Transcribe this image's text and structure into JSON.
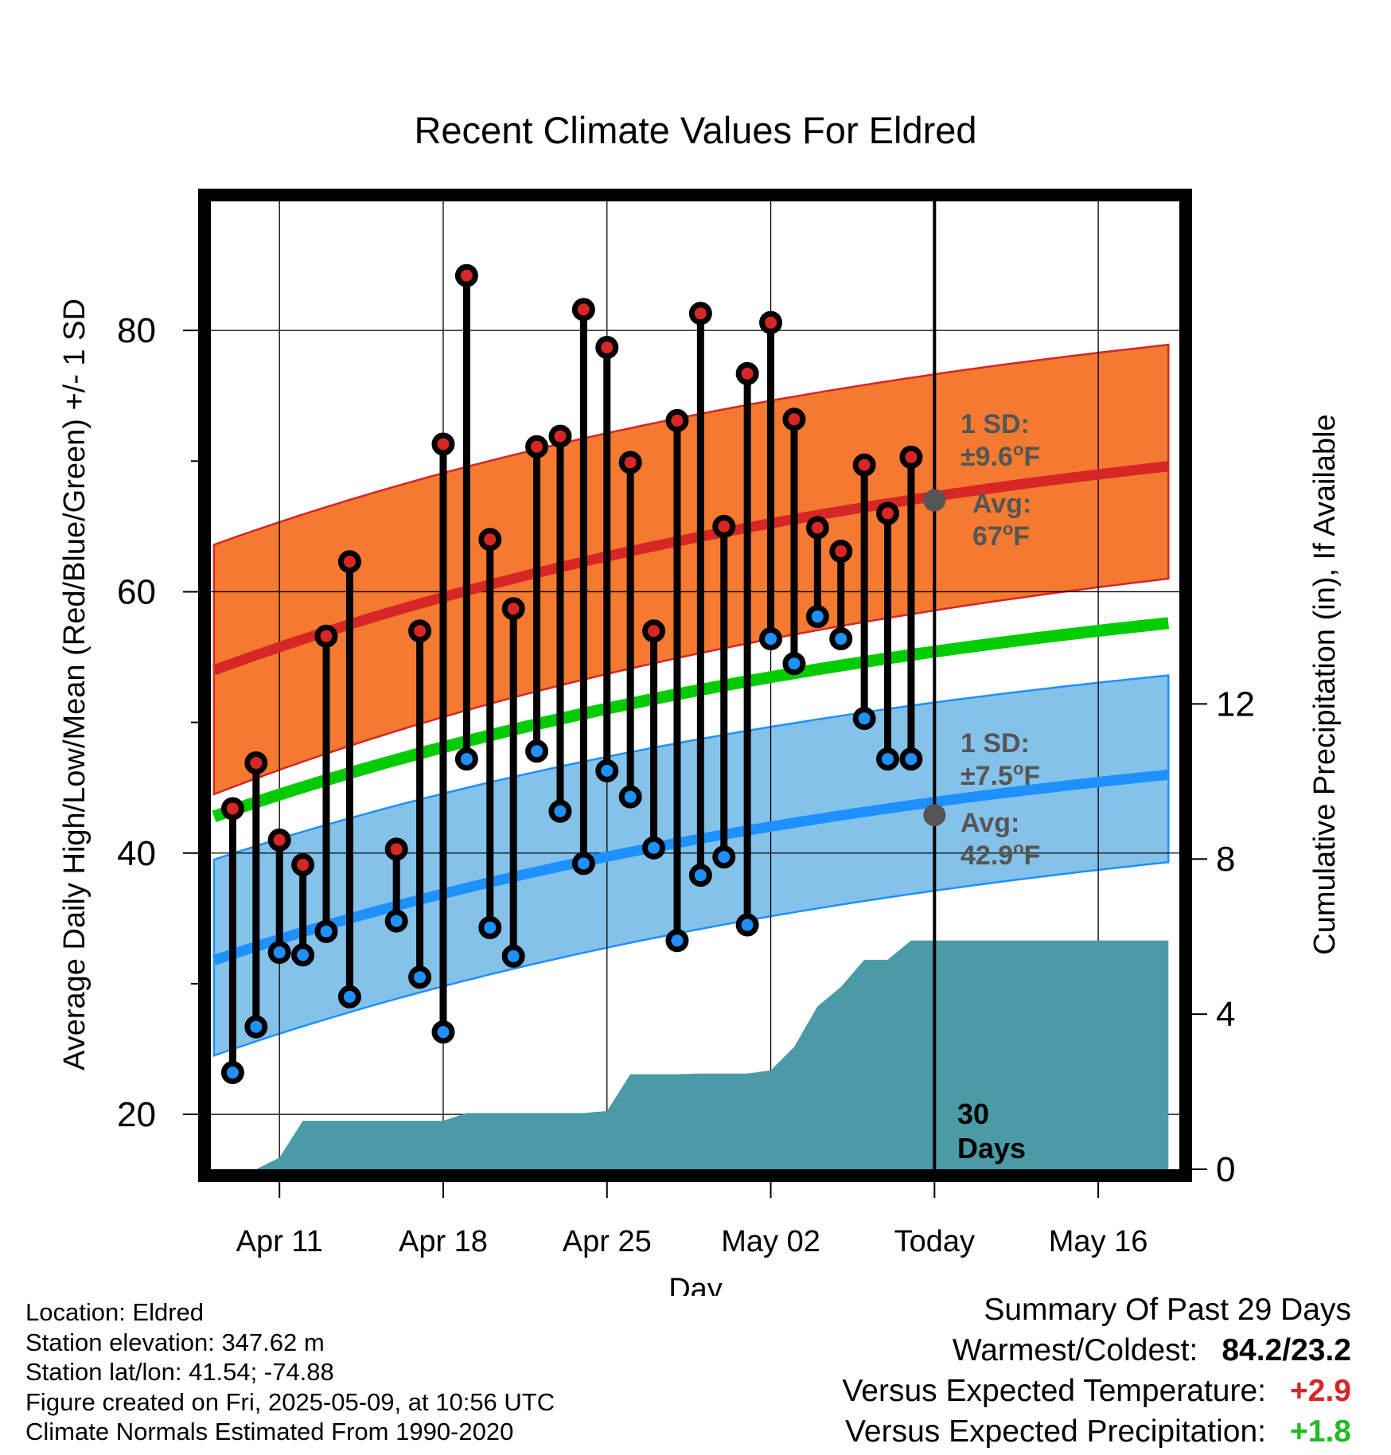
{
  "chart_data": {
    "type": "line",
    "title": "Recent Climate Values For Eldred",
    "xlabel": "Day",
    "ylabel": "Average Daily High/Low/Mean (Red/Blue/Green) +/- 1 SD",
    "y2label": "Cumulative Precipitation (in), If Available",
    "ylim": [
      15.8,
      90
    ],
    "y2lim": [
      0,
      25
    ],
    "xlim": [
      -3,
      38.5
    ],
    "x_tick_labels": [
      {
        "x": 0,
        "label": "Apr 11"
      },
      {
        "x": 7,
        "label": "Apr 18"
      },
      {
        "x": 14,
        "label": "Apr 25"
      },
      {
        "x": 21,
        "label": "May 02"
      },
      {
        "x": 28,
        "label": "Today"
      },
      {
        "x": 35,
        "label": "May 16"
      }
    ],
    "y_ticks": [
      20,
      40,
      60,
      80
    ],
    "y2_ticks": [
      0,
      4,
      8,
      12
    ],
    "grid": true,
    "x_day_index": [
      -2,
      -1,
      0,
      1,
      2,
      3,
      4,
      5,
      6,
      7,
      8,
      9,
      10,
      11,
      12,
      13,
      14,
      15,
      16,
      17,
      18,
      19,
      20,
      21,
      22,
      23,
      24,
      25,
      26,
      27
    ],
    "daily_high": [
      43.4,
      46.9,
      41.0,
      39.1,
      56.6,
      62.3,
      null,
      40.3,
      57.0,
      71.3,
      84.2,
      64.0,
      58.7,
      71.1,
      71.9,
      81.6,
      78.7,
      69.9,
      57.0,
      73.1,
      81.3,
      65.0,
      76.7,
      80.6,
      73.2,
      64.9,
      63.1,
      69.7,
      66.0,
      70.3
    ],
    "daily_low": [
      23.2,
      26.7,
      32.4,
      32.2,
      34.0,
      29.0,
      null,
      34.8,
      30.5,
      26.3,
      47.2,
      34.3,
      32.1,
      47.8,
      43.2,
      39.2,
      46.3,
      44.3,
      40.4,
      33.3,
      38.3,
      39.7,
      34.5,
      56.4,
      54.5,
      58.1,
      56.4,
      50.3,
      47.2,
      47.2
    ],
    "normal_days": [
      -2.8,
      38.0
    ],
    "normal_high_mean": [
      54.0,
      69.6
    ],
    "normal_high_sd_band": [
      [
        44.5,
        63.6
      ],
      [
        61.0,
        78.9
      ]
    ],
    "normal_mean": [
      42.8,
      57.6
    ],
    "normal_low_mean": [
      31.8,
      46.0
    ],
    "normal_low_sd_band": [
      [
        24.5,
        39.5
      ],
      [
        39.3,
        53.6
      ]
    ],
    "precip_cumulative": {
      "x": [
        -2.8,
        -1,
        0,
        1,
        2,
        3,
        4,
        5,
        6,
        7,
        8,
        9,
        10,
        11,
        12,
        13,
        14,
        15,
        16,
        17,
        18,
        19,
        20,
        21,
        22,
        23,
        24,
        25,
        26,
        27,
        38.0
      ],
      "y": [
        0,
        0,
        0.3,
        1.25,
        1.25,
        1.25,
        1.25,
        1.25,
        1.25,
        1.25,
        1.45,
        1.45,
        1.45,
        1.45,
        1.45,
        1.45,
        1.5,
        2.45,
        2.45,
        2.45,
        2.47,
        2.47,
        2.47,
        2.55,
        3.15,
        4.2,
        4.7,
        5.4,
        5.4,
        5.9,
        5.9
      ]
    },
    "colors": {
      "high_band": "#f37a30",
      "high_mean": "#d62626",
      "low_band": "#85c2ea",
      "low_mean": "#1e90ff",
      "mean": "#00cc00",
      "precip": "#4a9ba6",
      "high_marker": "#d62626",
      "low_marker": "#1e90ff",
      "today_marker": "#555555"
    },
    "annotations": {
      "high_sd_title": "1 SD:",
      "high_sd_value": "±9.6",
      "high_avg_title": "Avg:",
      "high_avg_value": "67",
      "low_sd_title": "1 SD:",
      "low_sd_value": "±7.5",
      "low_avg_title": "Avg:",
      "low_avg_value": "42.9",
      "unit_sup": "o",
      "unit": "F",
      "days_line1": "30",
      "days_line2": "Days"
    },
    "today_x": 28,
    "today_high_avg": 67.0,
    "today_low_avg": 42.9
  },
  "footer": {
    "location": "Location: Eldred",
    "elevation": "Station elevation: 347.62 m",
    "latlon": "Station lat/lon: 41.54; -74.88",
    "created": "Figure created on Fri, 2025-05-09, at 10:56 UTC",
    "normals": "Climate Normals Estimated From 1990-2020"
  },
  "summary": {
    "title": "Summary Of Past 29 Days",
    "warmest_label": "Warmest/Coldest:",
    "warmest_value": "84.2/23.2",
    "temp_label": "Versus Expected Temperature:",
    "temp_value": "+2.9",
    "temp_color": "#d62626",
    "precip_label": "Versus Expected Precipitation:",
    "precip_value": "+1.8",
    "precip_color": "#22bb22"
  }
}
